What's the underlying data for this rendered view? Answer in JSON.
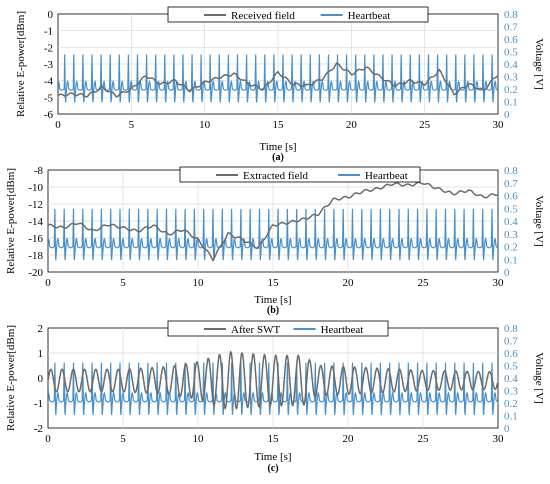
{
  "chart_data": [
    {
      "type": "line",
      "caption": "(a)",
      "xlabel": "Time [s]",
      "ylabel_left": "Relative E-power[dBm]",
      "ylabel_right": "Voltage [V]",
      "xlim": [
        0,
        30
      ],
      "ylim_left": [
        -6,
        0
      ],
      "ylim_right": [
        0,
        0.8
      ],
      "xticks": [
        "0",
        "5",
        "10",
        "15",
        "20",
        "25",
        "30"
      ],
      "yticks_left": [
        "0",
        "-1",
        "-2",
        "-3",
        "-4",
        "-5",
        "-6"
      ],
      "yticks_right": [
        "0.8",
        "0.7",
        "0.6",
        "0.5",
        "0.4",
        "0.3",
        "0.2",
        "0.1",
        "0"
      ],
      "grid": true,
      "legend_position": "top-center",
      "colors": {
        "field": "#6b6b6b",
        "heartbeat": "#4a90c8"
      },
      "series": [
        {
          "name": "Received field",
          "axis": "left",
          "x": [
            0,
            1,
            2,
            3,
            4,
            5,
            6,
            7,
            8,
            9,
            10,
            11,
            12,
            13,
            14,
            15,
            16,
            17,
            18,
            19,
            20,
            21,
            22,
            23,
            24,
            25,
            26,
            27,
            28,
            29,
            30
          ],
          "values": [
            -4.9,
            -4.8,
            -4.9,
            -4.4,
            -4.9,
            -4.5,
            -3.7,
            -4.2,
            -4.0,
            -4.6,
            -4.1,
            -3.8,
            -3.6,
            -4.2,
            -4.5,
            -3.5,
            -4.2,
            -4.3,
            -3.9,
            -3.0,
            -3.6,
            -3.2,
            -3.8,
            -4.3,
            -4.0,
            -4.2,
            -3.4,
            -4.8,
            -4.2,
            -4.6,
            -3.6
          ]
        },
        {
          "name": "Heartbeat",
          "axis": "right",
          "style": "ecg",
          "period": 0.62,
          "baseline": 0.2,
          "peak": 0.5,
          "trough": 0.07
        }
      ]
    },
    {
      "type": "line",
      "caption": "(b)",
      "xlabel": "Time [s]",
      "ylabel_left": "Relative E-power[dBm]",
      "ylabel_right": "Voltage [V]",
      "xlim": [
        0,
        30
      ],
      "ylim_left": [
        -20,
        -8
      ],
      "ylim_right": [
        0,
        0.8
      ],
      "xticks": [
        "0",
        "5",
        "10",
        "15",
        "20",
        "25",
        "30"
      ],
      "yticks_left": [
        "-8",
        "-10",
        "-12",
        "-14",
        "-16",
        "-18",
        "-20"
      ],
      "yticks_right": [
        "0.8",
        "0.7",
        "0.6",
        "0.5",
        "0.4",
        "0.3",
        "0.2",
        "0.1",
        "0"
      ],
      "grid": true,
      "legend_position": "top-center",
      "colors": {
        "field": "#6b6b6b",
        "heartbeat": "#4a90c8"
      },
      "series": [
        {
          "name": "Extracted field",
          "axis": "left",
          "x": [
            0,
            1,
            2,
            3,
            4,
            5,
            6,
            7,
            8,
            9,
            10,
            11,
            12,
            13,
            14,
            15,
            16,
            17,
            18,
            19,
            20,
            21,
            22,
            23,
            24,
            25,
            26,
            27,
            28,
            29,
            30
          ],
          "values": [
            -14.5,
            -14.8,
            -14.2,
            -15.2,
            -14.4,
            -14.8,
            -15.2,
            -14.5,
            -15.6,
            -15.0,
            -16.2,
            -18.5,
            -15.5,
            -16.2,
            -17.2,
            -14.5,
            -14.2,
            -13.8,
            -13.2,
            -11.5,
            -11.2,
            -10.5,
            -10.2,
            -9.6,
            -9.8,
            -9.5,
            -10.2,
            -10.8,
            -10.4,
            -11.2,
            -10.8
          ]
        },
        {
          "name": "Heartbeat",
          "axis": "right",
          "style": "ecg",
          "period": 0.62,
          "baseline": 0.2,
          "peak": 0.52,
          "trough": 0.07
        }
      ]
    },
    {
      "type": "line",
      "caption": "(c)",
      "xlabel": "Time [s]",
      "ylabel_left": "Relative E-power[dBm]",
      "ylabel_right": "Voltage [V]",
      "xlim": [
        0,
        30
      ],
      "ylim_left": [
        -2,
        2
      ],
      "ylim_right": [
        0,
        0.8
      ],
      "xticks": [
        "0",
        "5",
        "10",
        "15",
        "20",
        "25",
        "30"
      ],
      "yticks_left": [
        "2",
        "1",
        "0",
        "-1",
        "-2"
      ],
      "yticks_right": [
        "0.8",
        "0.7",
        "0.6",
        "0.5",
        "0.4",
        "0.3",
        "0.2",
        "0.1",
        "0"
      ],
      "grid": true,
      "legend_position": "top-center",
      "colors": {
        "field": "#6b6b6b",
        "heartbeat": "#4a90c8"
      },
      "series": [
        {
          "name": "After SWT",
          "axis": "left",
          "style": "oscillation",
          "period": 0.75,
          "amplitude_envelope": {
            "x": [
              0,
              5,
              8,
              10,
              12,
              15,
              17,
              18,
              20,
              25,
              30
            ],
            "values": [
              0.45,
              0.45,
              0.55,
              0.75,
              1.15,
              1.0,
              1.0,
              0.6,
              0.55,
              0.4,
              0.35
            ]
          }
        },
        {
          "name": "Heartbeat",
          "axis": "right",
          "style": "ecg",
          "period": 0.62,
          "baseline": 0.22,
          "peak": 0.55,
          "trough": 0.08
        }
      ]
    }
  ]
}
